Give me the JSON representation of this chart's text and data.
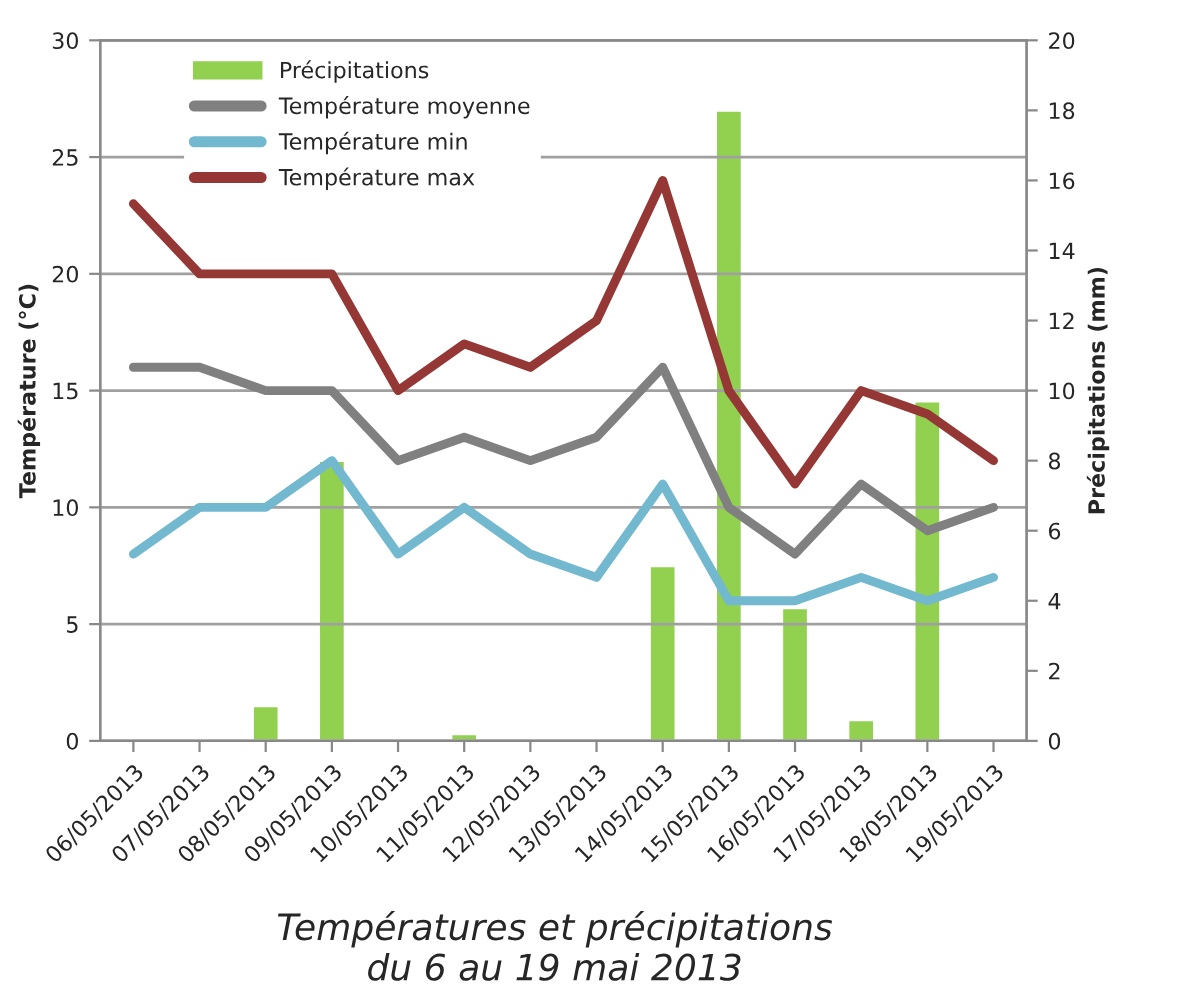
{
  "chart_data": {
    "type": "line",
    "title": "Températures et précipitations\ndu 6 au 19 mai 2013",
    "ylabel": "Température (°C)",
    "y2label": "Précipitations (mm)",
    "categories": [
      "06/05/2013",
      "07/05/2013",
      "08/05/2013",
      "09/05/2013",
      "10/05/2013",
      "11/05/2013",
      "12/05/2013",
      "13/05/2013",
      "14/05/2013",
      "15/05/2013",
      "16/05/2013",
      "17/05/2013",
      "18/05/2013",
      "19/05/2013"
    ],
    "series": [
      {
        "name": "Précipitations",
        "type": "bar",
        "axis": "y2",
        "color": "#92d050",
        "values": [
          null,
          null,
          1,
          8,
          null,
          0.2,
          null,
          null,
          5,
          18,
          3.8,
          0.6,
          9.7,
          null
        ]
      },
      {
        "name": "Température moyenne",
        "color": "#808080",
        "values": [
          16,
          16,
          15,
          15,
          12,
          13,
          12,
          13,
          16,
          10,
          8,
          11,
          9,
          10
        ]
      },
      {
        "name": "Température min",
        "color": "#72b8cf",
        "values": [
          8,
          10,
          10,
          12,
          8,
          10,
          8,
          7,
          11,
          6,
          6,
          7,
          6,
          7
        ]
      },
      {
        "name": "Température max",
        "color": "#953735",
        "values": [
          23,
          20,
          20,
          20,
          15,
          17,
          16,
          18,
          24,
          15,
          11,
          15,
          14,
          12
        ]
      }
    ],
    "ylim": [
      0,
      30
    ],
    "yticks": [
      0,
      5,
      10,
      15,
      20,
      25,
      30
    ],
    "y2lim": [
      0,
      20
    ],
    "y2ticks": [
      0,
      2,
      4,
      6,
      8,
      10,
      12,
      14,
      16,
      18,
      20
    ],
    "grid": "y",
    "legend": "top left"
  }
}
